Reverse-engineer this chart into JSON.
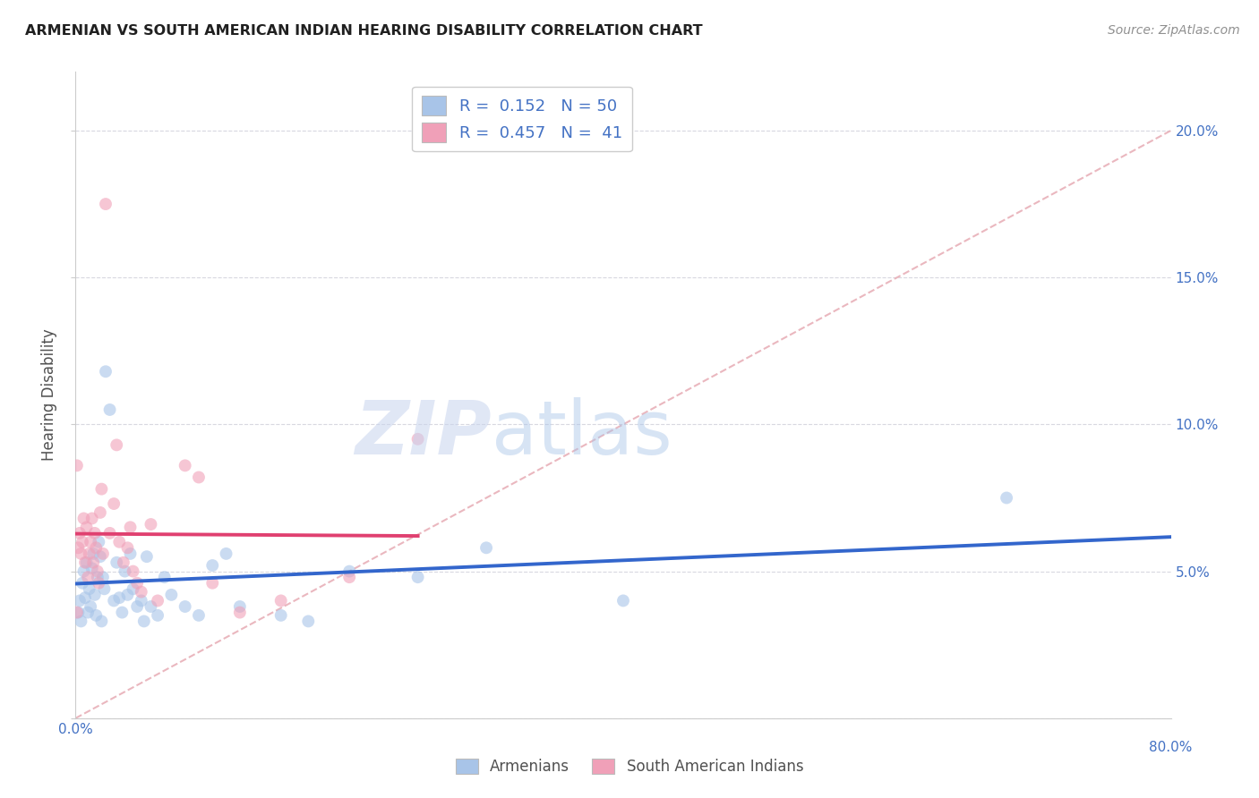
{
  "title": "ARMENIAN VS SOUTH AMERICAN INDIAN HEARING DISABILITY CORRELATION CHART",
  "source": "Source: ZipAtlas.com",
  "ylabel": "Hearing Disability",
  "blue_r": 0.152,
  "blue_n": 50,
  "pink_r": 0.457,
  "pink_n": 41,
  "blue_color": "#a8c4e8",
  "pink_color": "#f0a0b8",
  "blue_line_color": "#3366cc",
  "pink_line_color": "#e04070",
  "diagonal_color": "#e8b0b8",
  "background": "#ffffff",
  "grid_color": "#d8d8e0",
  "title_color": "#202020",
  "source_color": "#909090",
  "axis_label_color": "#4472c4",
  "blue_points": [
    [
      0.002,
      0.036
    ],
    [
      0.003,
      0.04
    ],
    [
      0.004,
      0.033
    ],
    [
      0.005,
      0.046
    ],
    [
      0.006,
      0.05
    ],
    [
      0.007,
      0.041
    ],
    [
      0.008,
      0.053
    ],
    [
      0.009,
      0.036
    ],
    [
      0.01,
      0.044
    ],
    [
      0.011,
      0.038
    ],
    [
      0.012,
      0.051
    ],
    [
      0.013,
      0.056
    ],
    [
      0.014,
      0.042
    ],
    [
      0.015,
      0.035
    ],
    [
      0.016,
      0.048
    ],
    [
      0.017,
      0.06
    ],
    [
      0.018,
      0.055
    ],
    [
      0.019,
      0.033
    ],
    [
      0.02,
      0.048
    ],
    [
      0.021,
      0.044
    ],
    [
      0.022,
      0.118
    ],
    [
      0.025,
      0.105
    ],
    [
      0.028,
      0.04
    ],
    [
      0.03,
      0.053
    ],
    [
      0.032,
      0.041
    ],
    [
      0.034,
      0.036
    ],
    [
      0.036,
      0.05
    ],
    [
      0.038,
      0.042
    ],
    [
      0.04,
      0.056
    ],
    [
      0.042,
      0.044
    ],
    [
      0.045,
      0.038
    ],
    [
      0.048,
      0.04
    ],
    [
      0.05,
      0.033
    ],
    [
      0.052,
      0.055
    ],
    [
      0.055,
      0.038
    ],
    [
      0.06,
      0.035
    ],
    [
      0.065,
      0.048
    ],
    [
      0.07,
      0.042
    ],
    [
      0.08,
      0.038
    ],
    [
      0.09,
      0.035
    ],
    [
      0.1,
      0.052
    ],
    [
      0.11,
      0.056
    ],
    [
      0.12,
      0.038
    ],
    [
      0.15,
      0.035
    ],
    [
      0.17,
      0.033
    ],
    [
      0.2,
      0.05
    ],
    [
      0.25,
      0.048
    ],
    [
      0.3,
      0.058
    ],
    [
      0.4,
      0.04
    ],
    [
      0.68,
      0.075
    ]
  ],
  "pink_points": [
    [
      0.001,
      0.036
    ],
    [
      0.002,
      0.058
    ],
    [
      0.003,
      0.063
    ],
    [
      0.004,
      0.056
    ],
    [
      0.005,
      0.06
    ],
    [
      0.006,
      0.068
    ],
    [
      0.007,
      0.053
    ],
    [
      0.008,
      0.065
    ],
    [
      0.009,
      0.048
    ],
    [
      0.01,
      0.056
    ],
    [
      0.011,
      0.06
    ],
    [
      0.012,
      0.068
    ],
    [
      0.013,
      0.053
    ],
    [
      0.014,
      0.063
    ],
    [
      0.015,
      0.058
    ],
    [
      0.016,
      0.05
    ],
    [
      0.017,
      0.046
    ],
    [
      0.018,
      0.07
    ],
    [
      0.019,
      0.078
    ],
    [
      0.02,
      0.056
    ],
    [
      0.022,
      0.175
    ],
    [
      0.025,
      0.063
    ],
    [
      0.028,
      0.073
    ],
    [
      0.03,
      0.093
    ],
    [
      0.032,
      0.06
    ],
    [
      0.035,
      0.053
    ],
    [
      0.038,
      0.058
    ],
    [
      0.04,
      0.065
    ],
    [
      0.042,
      0.05
    ],
    [
      0.045,
      0.046
    ],
    [
      0.048,
      0.043
    ],
    [
      0.055,
      0.066
    ],
    [
      0.06,
      0.04
    ],
    [
      0.08,
      0.086
    ],
    [
      0.09,
      0.082
    ],
    [
      0.1,
      0.046
    ],
    [
      0.12,
      0.036
    ],
    [
      0.15,
      0.04
    ],
    [
      0.2,
      0.048
    ],
    [
      0.25,
      0.095
    ],
    [
      0.001,
      0.086
    ]
  ],
  "xlim": [
    0.0,
    0.8
  ],
  "ylim": [
    0.0,
    0.22
  ],
  "xticks": [
    0.0,
    0.1,
    0.2,
    0.3,
    0.4,
    0.5,
    0.6,
    0.7,
    0.8
  ],
  "yticks": [
    0.0,
    0.05,
    0.1,
    0.15,
    0.2
  ],
  "right_ytick_labels": [
    "",
    "5.0%",
    "10.0%",
    "15.0%",
    "20.0%"
  ],
  "marker_size": 10,
  "alpha": 0.6
}
